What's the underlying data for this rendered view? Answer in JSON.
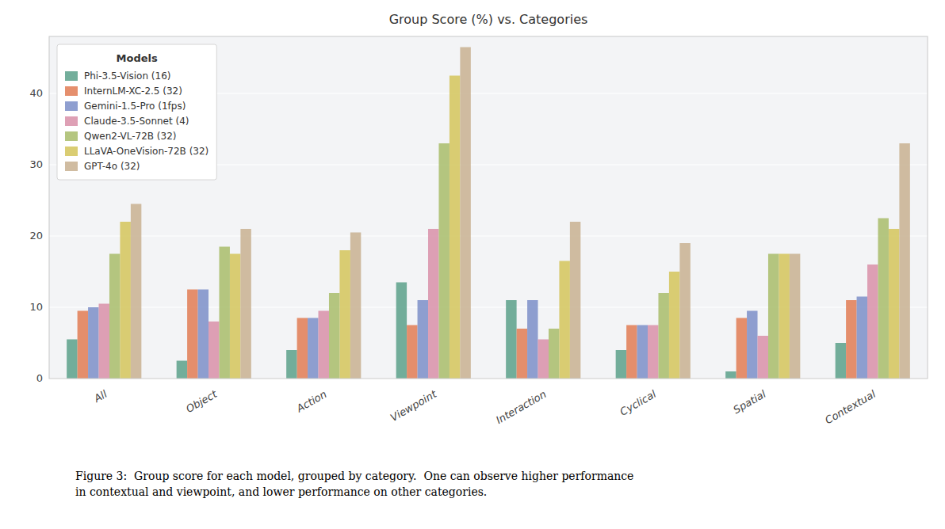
{
  "chart_data": {
    "type": "bar",
    "title": "Group Score (%) vs. Categories",
    "categories": [
      "All",
      "Object",
      "Action",
      "Viewpoint",
      "Interaction",
      "Cyclical",
      "Spatial",
      "Contextual"
    ],
    "series": [
      {
        "name": "Phi-3.5-Vision (16)",
        "color": "#5ba08a",
        "values": [
          5.5,
          2.5,
          4.0,
          13.5,
          11.0,
          4.0,
          1.0,
          5.0
        ]
      },
      {
        "name": "InternLM-XC-2.5 (32)",
        "color": "#e07b54",
        "values": [
          9.5,
          12.5,
          8.5,
          7.5,
          7.0,
          7.5,
          8.5,
          11.0
        ]
      },
      {
        "name": "Gemini-1.5-Pro (1fps)",
        "color": "#7b8ec8",
        "values": [
          10.0,
          12.5,
          8.5,
          11.0,
          11.0,
          7.5,
          9.5,
          11.5
        ]
      },
      {
        "name": "Claude-3.5-Sonnet (4)",
        "color": "#d88fa8",
        "values": [
          10.5,
          8.0,
          9.5,
          21.0,
          5.5,
          7.5,
          6.0,
          16.0
        ]
      },
      {
        "name": "Qwen2-VL-72B (32)",
        "color": "#a8bc6a",
        "values": [
          17.5,
          18.5,
          12.0,
          33.0,
          7.0,
          12.0,
          17.5,
          22.5
        ]
      },
      {
        "name": "LLaVA-OneVision-72B (32)",
        "color": "#d4c45a",
        "values": [
          22.0,
          17.5,
          18.0,
          42.5,
          16.5,
          15.0,
          17.5,
          21.0
        ]
      },
      {
        "name": "GPT-4o (32)",
        "color": "#c8b090",
        "values": [
          24.5,
          21.0,
          20.5,
          46.5,
          22.0,
          19.0,
          17.5,
          33.0
        ]
      }
    ],
    "ylim": [
      0,
      48
    ],
    "yticks": [
      0,
      10,
      20,
      30,
      40
    ],
    "grid": true,
    "legend": "upper left",
    "legend_title": "Models",
    "caption": "Figure 3:  Group score for each model, grouped by category.  One can observe higher performance\nin contextual and viewpoint, and lower performance on other categories."
  }
}
